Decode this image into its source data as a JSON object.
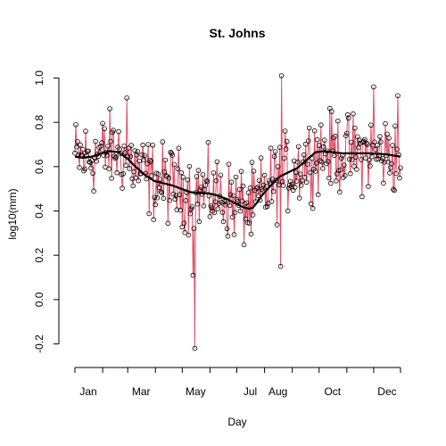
{
  "chart_data": {
    "type": "line",
    "title": "St. Johns",
    "xlabel": "Day",
    "ylabel": "log10(mm)",
    "xlim": [
      1,
      365
    ],
    "ylim": [
      -0.25,
      1.05
    ],
    "yticks": [
      -0.2,
      0.0,
      0.2,
      0.4,
      0.6,
      0.8,
      1.0
    ],
    "ytick_labels": [
      "-0.2",
      "0.0",
      "0.2",
      "0.4",
      "0.6",
      "0.8",
      "1.0"
    ],
    "month_ticks": [
      1,
      32,
      60,
      91,
      121,
      152,
      182,
      213,
      244,
      274,
      305,
      335,
      365
    ],
    "month_labels": [
      {
        "label": "Jan",
        "day": 16
      },
      {
        "label": "Mar",
        "day": 75
      },
      {
        "label": "May",
        "day": 136
      },
      {
        "label": "Jul",
        "day": 197
      },
      {
        "label": "Aug",
        "day": 228
      },
      {
        "label": "Oct",
        "day": 289
      },
      {
        "label": "Dec",
        "day": 350
      }
    ],
    "smooth": {
      "name": "smooth",
      "x": [
        1,
        10,
        20,
        30,
        40,
        50,
        60,
        70,
        80,
        90,
        100,
        110,
        120,
        130,
        140,
        150,
        160,
        170,
        180,
        190,
        196,
        200,
        205,
        210,
        220,
        230,
        240,
        250,
        260,
        270,
        280,
        290,
        300,
        310,
        320,
        330,
        340,
        350,
        360,
        365
      ],
      "y": [
        0.645,
        0.64,
        0.645,
        0.66,
        0.67,
        0.665,
        0.635,
        0.595,
        0.56,
        0.535,
        0.525,
        0.515,
        0.5,
        0.485,
        0.48,
        0.48,
        0.47,
        0.455,
        0.435,
        0.415,
        0.41,
        0.415,
        0.44,
        0.47,
        0.515,
        0.555,
        0.575,
        0.595,
        0.63,
        0.665,
        0.67,
        0.665,
        0.66,
        0.66,
        0.66,
        0.66,
        0.658,
        0.655,
        0.648,
        0.645
      ],
      "color": "#000000"
    },
    "daily_series": {
      "name": "daily",
      "line_color": "#DF536B",
      "point_color": "#000000",
      "noise_amplitude": 0.16,
      "extremes": [
        {
          "day": 135,
          "value": -0.22
        },
        {
          "day": 133,
          "value": 0.11
        },
        {
          "day": 232,
          "value": 1.01
        },
        {
          "day": 231,
          "value": 0.15
        },
        {
          "day": 335,
          "value": 0.96
        },
        {
          "day": 362,
          "value": 0.92
        },
        {
          "day": 59,
          "value": 0.91
        }
      ]
    }
  }
}
